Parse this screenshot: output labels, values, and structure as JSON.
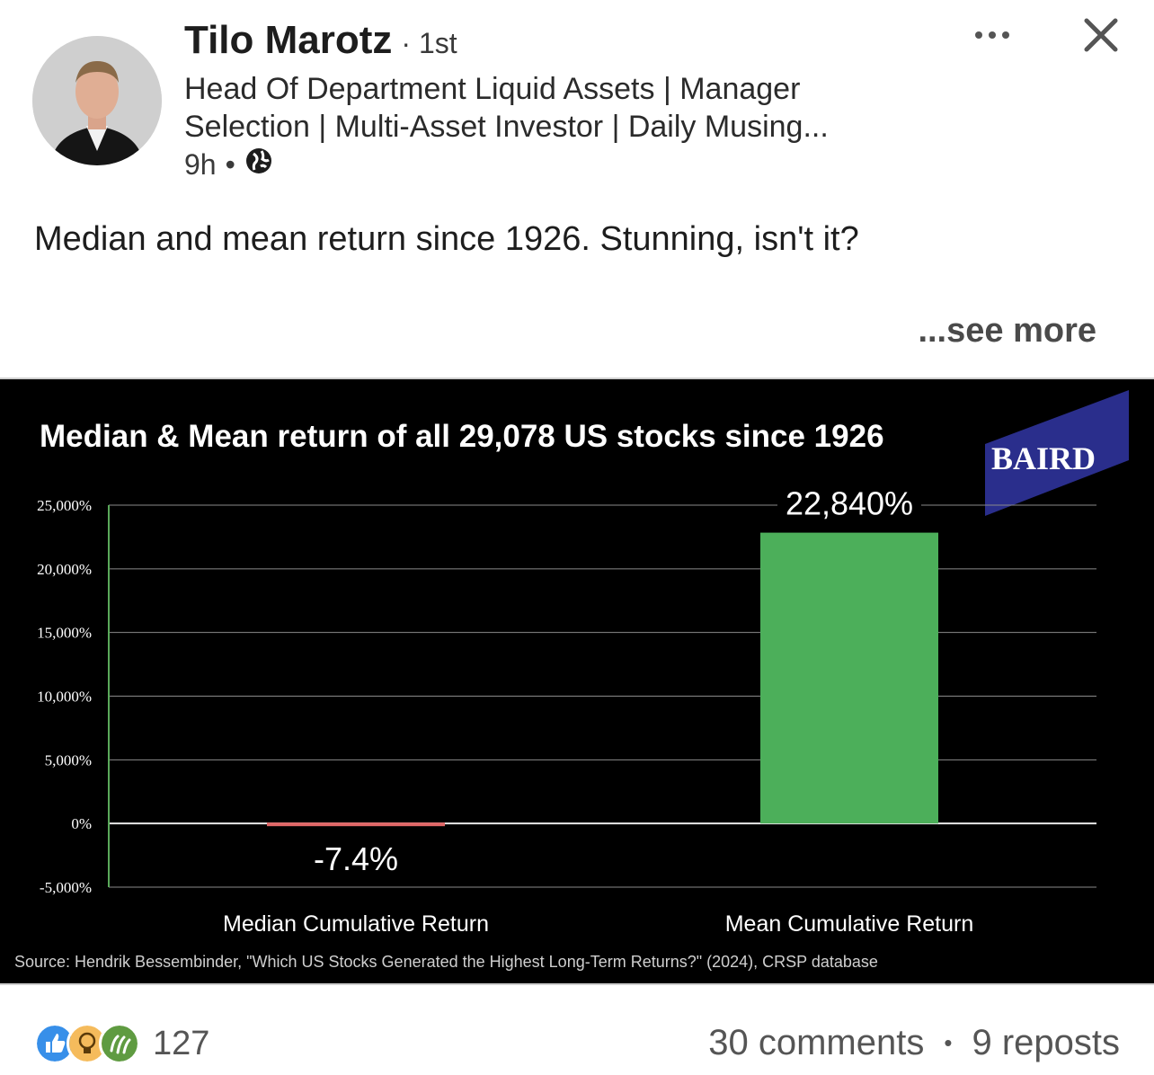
{
  "author": {
    "name": "Tilo Marotz",
    "degree": "1st",
    "headline": "Head Of Department Liquid Assets | Manager Selection | Multi-Asset Investor | Daily Musing...",
    "time": "9h"
  },
  "post": {
    "text": "Median and mean return since 1926. Stunning, isn't it?",
    "see_more": "...see more"
  },
  "icons": {
    "more": "more-horizontal-icon",
    "close": "close-icon",
    "visibility": "globe-icon"
  },
  "chart_data": {
    "type": "bar",
    "title": "Median & Mean return of all 29,078 US stocks since 1926",
    "logo_text": "BAIRD",
    "categories": [
      "Median Cumulative Return",
      "Mean Cumulative Return"
    ],
    "values": [
      -7.4,
      22840
    ],
    "value_labels": [
      "-7.4%",
      "22,840%"
    ],
    "colors": [
      "#e06666",
      "#4caf5a"
    ],
    "ylim": [
      -5000,
      25000
    ],
    "yticks": [
      -5000,
      0,
      5000,
      10000,
      15000,
      20000,
      25000
    ],
    "ytick_labels": [
      "-5,000%",
      "0%",
      "5,000%",
      "10,000%",
      "15,000%",
      "20,000%",
      "25,000%"
    ],
    "grid": true,
    "source": "Source: Hendrik Bessembinder, \"Which US Stocks Generated the Highest Long-Term Returns?\" (2024), CRSP database"
  },
  "footer": {
    "reaction_count": "127",
    "comments": "30 comments",
    "separator": "•",
    "reposts": "9 reposts",
    "reaction_icons": [
      "like-icon",
      "insightful-icon",
      "celebrate-icon"
    ],
    "reaction_colors": [
      "#378fe9",
      "#f5bb5c",
      "#5f9b41"
    ]
  }
}
